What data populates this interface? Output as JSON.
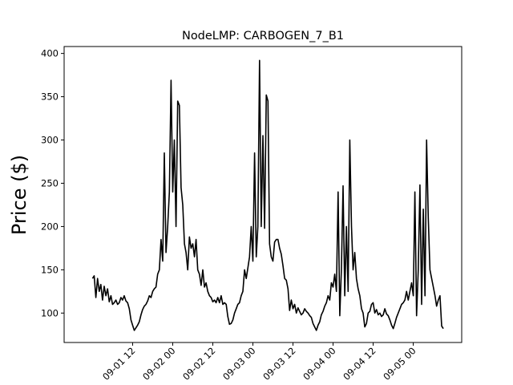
{
  "chart_data": {
    "type": "line",
    "title": "NodeLMP: CARBOGEN_7_B1",
    "xlabel": "",
    "ylabel": "Price ($)",
    "xlim_hours": [
      -8.5,
      110.5
    ],
    "ylim": [
      66,
      408
    ],
    "grid": false,
    "legend": "none",
    "x_start": "2013-09-01 00:00",
    "x_step_hours": 0.5,
    "xticks": [
      {
        "hour": 12,
        "label": "09-01 12"
      },
      {
        "hour": 24,
        "label": "09-02 00"
      },
      {
        "hour": 36,
        "label": "09-02 12"
      },
      {
        "hour": 48,
        "label": "09-03 00"
      },
      {
        "hour": 60,
        "label": "09-03 12"
      },
      {
        "hour": 72,
        "label": "09-04 00"
      },
      {
        "hour": 84,
        "label": "09-04 12"
      },
      {
        "hour": 96,
        "label": "09-05 00"
      }
    ],
    "yticks": [
      100,
      150,
      200,
      250,
      300,
      350,
      400
    ],
    "series": [
      {
        "color": "#000000",
        "keypoints": [
          [
            0,
            140
          ],
          [
            0.5,
            143
          ],
          [
            1,
            118
          ],
          [
            1.5,
            140
          ],
          [
            2,
            125
          ],
          [
            2.5,
            133
          ],
          [
            3,
            115
          ],
          [
            3.5,
            131
          ],
          [
            4,
            120
          ],
          [
            4.5,
            128
          ],
          [
            5,
            113
          ],
          [
            5.5,
            120
          ],
          [
            6,
            110
          ],
          [
            6.5,
            112
          ],
          [
            7,
            115
          ],
          [
            7.5,
            110
          ],
          [
            8,
            112
          ],
          [
            8.5,
            118
          ],
          [
            9,
            115
          ],
          [
            9.5,
            120
          ],
          [
            10,
            114
          ],
          [
            10.5,
            112
          ],
          [
            11,
            105
          ],
          [
            11.5,
            92
          ],
          [
            12,
            86
          ],
          [
            12.5,
            80
          ],
          [
            13,
            83
          ],
          [
            13.5,
            86
          ],
          [
            14,
            90
          ],
          [
            14.5,
            98
          ],
          [
            15,
            104
          ],
          [
            15.5,
            108
          ],
          [
            16,
            110
          ],
          [
            16.5,
            114
          ],
          [
            17,
            120
          ],
          [
            17.5,
            118
          ],
          [
            18,
            125
          ],
          [
            18.5,
            128
          ],
          [
            19,
            130
          ],
          [
            19.5,
            145
          ],
          [
            20,
            150
          ],
          [
            20.5,
            185
          ],
          [
            21,
            160
          ],
          [
            21.5,
            285
          ],
          [
            22,
            170
          ],
          [
            22.5,
            200
          ],
          [
            23,
            240
          ],
          [
            23.5,
            369
          ],
          [
            24,
            240
          ],
          [
            24.5,
            300
          ],
          [
            25,
            200
          ],
          [
            25.5,
            345
          ],
          [
            26,
            340
          ],
          [
            26.5,
            245
          ],
          [
            27,
            225
          ],
          [
            27.5,
            180
          ],
          [
            28,
            170
          ],
          [
            28.5,
            150
          ],
          [
            29,
            188
          ],
          [
            29.5,
            175
          ],
          [
            30,
            180
          ],
          [
            30.5,
            165
          ],
          [
            31,
            185
          ],
          [
            31.5,
            150
          ],
          [
            32,
            145
          ],
          [
            32.5,
            132
          ],
          [
            33,
            150
          ],
          [
            33.5,
            130
          ],
          [
            34,
            135
          ],
          [
            34.5,
            125
          ],
          [
            35,
            120
          ],
          [
            35.5,
            118
          ],
          [
            36,
            113
          ],
          [
            36.5,
            115
          ],
          [
            37,
            112
          ],
          [
            37.5,
            118
          ],
          [
            38,
            112
          ],
          [
            38.5,
            120
          ],
          [
            39,
            110
          ],
          [
            39.5,
            112
          ],
          [
            40,
            110
          ],
          [
            40.5,
            96
          ],
          [
            41,
            87
          ],
          [
            41.5,
            88
          ],
          [
            42,
            92
          ],
          [
            42.5,
            100
          ],
          [
            43,
            105
          ],
          [
            43.5,
            110
          ],
          [
            44,
            112
          ],
          [
            44.5,
            120
          ],
          [
            45,
            125
          ],
          [
            45.5,
            150
          ],
          [
            46,
            140
          ],
          [
            46.5,
            152
          ],
          [
            47,
            165
          ],
          [
            47.5,
            200
          ],
          [
            48,
            160
          ],
          [
            48.5,
            285
          ],
          [
            49,
            165
          ],
          [
            49.5,
            200
          ],
          [
            50,
            392
          ],
          [
            50.5,
            200
          ],
          [
            51,
            305
          ],
          [
            51.5,
            198
          ],
          [
            52,
            352
          ],
          [
            52.5,
            345
          ],
          [
            53,
            180
          ],
          [
            53.5,
            165
          ],
          [
            54,
            160
          ],
          [
            54.5,
            182
          ],
          [
            55,
            185
          ],
          [
            55.5,
            185
          ],
          [
            56,
            175
          ],
          [
            56.5,
            168
          ],
          [
            57,
            155
          ],
          [
            57.5,
            140
          ],
          [
            58,
            138
          ],
          [
            58.5,
            128
          ],
          [
            59,
            103
          ],
          [
            59.5,
            115
          ],
          [
            60,
            105
          ],
          [
            60.5,
            110
          ],
          [
            61,
            100
          ],
          [
            61.5,
            106
          ],
          [
            62,
            102
          ],
          [
            62.5,
            98
          ],
          [
            63,
            100
          ],
          [
            63.5,
            105
          ],
          [
            64,
            102
          ],
          [
            64.5,
            100
          ],
          [
            65,
            97
          ],
          [
            65.5,
            95
          ],
          [
            66,
            88
          ],
          [
            66.5,
            84
          ],
          [
            67,
            80
          ],
          [
            67.5,
            86
          ],
          [
            68,
            90
          ],
          [
            68.5,
            98
          ],
          [
            69,
            102
          ],
          [
            69.5,
            108
          ],
          [
            70,
            112
          ],
          [
            70.5,
            120
          ],
          [
            71,
            115
          ],
          [
            71.5,
            135
          ],
          [
            72,
            130
          ],
          [
            72.5,
            145
          ],
          [
            73,
            125
          ],
          [
            73.5,
            240
          ],
          [
            74,
            97
          ],
          [
            74.5,
            150
          ],
          [
            75,
            247
          ],
          [
            75.5,
            120
          ],
          [
            76,
            200
          ],
          [
            76.5,
            125
          ],
          [
            77,
            300
          ],
          [
            77.5,
            200
          ],
          [
            78,
            150
          ],
          [
            78.5,
            170
          ],
          [
            79,
            140
          ],
          [
            79.5,
            128
          ],
          [
            80,
            120
          ],
          [
            80.5,
            105
          ],
          [
            81,
            100
          ],
          [
            81.5,
            84
          ],
          [
            82,
            88
          ],
          [
            82.5,
            100
          ],
          [
            83,
            102
          ],
          [
            83.5,
            110
          ],
          [
            84,
            112
          ],
          [
            84.5,
            100
          ],
          [
            85,
            104
          ],
          [
            85.5,
            98
          ],
          [
            86,
            100
          ],
          [
            86.5,
            96
          ],
          [
            87,
            98
          ],
          [
            87.5,
            105
          ],
          [
            88,
            99
          ],
          [
            88.5,
            97
          ],
          [
            89,
            92
          ],
          [
            89.5,
            86
          ],
          [
            90,
            82
          ],
          [
            90.5,
            88
          ],
          [
            91,
            95
          ],
          [
            91.5,
            100
          ],
          [
            92,
            105
          ],
          [
            92.5,
            110
          ],
          [
            93,
            112
          ],
          [
            93.5,
            115
          ],
          [
            94,
            125
          ],
          [
            94.5,
            115
          ],
          [
            95,
            125
          ],
          [
            95.5,
            135
          ],
          [
            96,
            120
          ],
          [
            96.5,
            240
          ],
          [
            97,
            97
          ],
          [
            97.5,
            150
          ],
          [
            98,
            248
          ],
          [
            98.5,
            110
          ],
          [
            99,
            220
          ],
          [
            99.5,
            120
          ],
          [
            100,
            300
          ],
          [
            100.5,
            210
          ],
          [
            101,
            150
          ],
          [
            101.5,
            140
          ],
          [
            102,
            130
          ],
          [
            102.5,
            120
          ],
          [
            103,
            108
          ],
          [
            103.5,
            115
          ],
          [
            104,
            120
          ],
          [
            104.5,
            85
          ],
          [
            105,
            82
          ]
        ]
      }
    ]
  }
}
